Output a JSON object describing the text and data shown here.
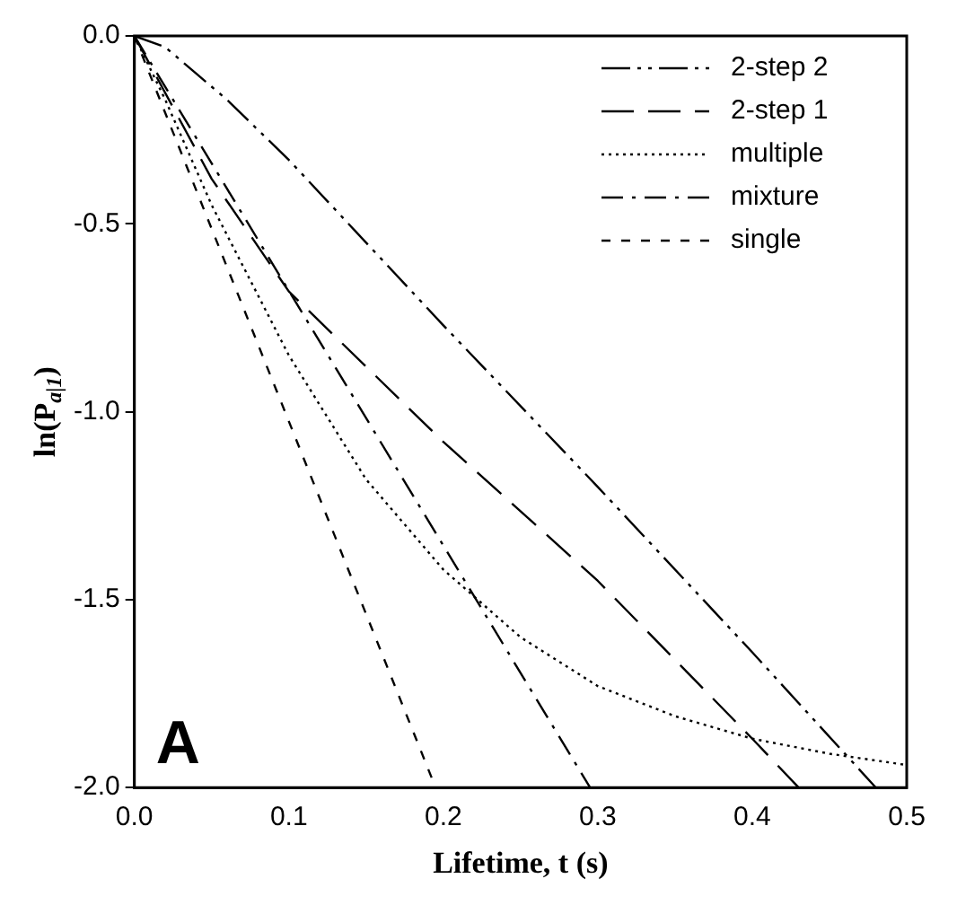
{
  "chart_data": {
    "type": "line",
    "xlabel": "Lifetime, t (s)",
    "ylabel": "ln(P$_{a|1}$)",
    "annotations": [
      "A"
    ],
    "xlim": [
      0,
      0.5
    ],
    "xticks": [
      {
        "value": 0,
        "label": "0.0"
      },
      0.1,
      0.2,
      0.3,
      0.4,
      0.5
    ],
    "ylim": [
      -2,
      0
    ],
    "yticks": [
      {
        "value": 0,
        "label": "0.0"
      },
      -0.5,
      {
        "value": -1,
        "label": "-1.0"
      },
      -1.5,
      {
        "value": -2,
        "label": "-2.0"
      }
    ],
    "grid": false,
    "legend": "top right",
    "marker": "none",
    "series": [
      {
        "name": "2-step 2",
        "color": "#000000",
        "line_style": "dashed",
        "x": [
          0,
          0.02,
          0.04,
          0.06,
          0.1,
          0.2,
          0.3,
          0.4,
          0.48
        ],
        "values": [
          0,
          -0.03,
          -0.1,
          -0.17,
          -0.33,
          -0.77,
          -1.2,
          -1.64,
          -2
        ]
      },
      {
        "name": "2-step 1",
        "color": "#000000",
        "line_style": "dashed",
        "x": [
          0,
          0.05,
          0.1,
          0.2,
          0.3,
          0.4,
          0.43
        ],
        "values": [
          0,
          -0.38,
          -0.68,
          -1.08,
          -1.45,
          -1.87,
          -2
        ]
      },
      {
        "name": "multiple",
        "color": "#000000",
        "line_style": "dotted",
        "x": [
          0,
          0.02,
          0.05,
          0.1,
          0.15,
          0.2,
          0.25,
          0.3,
          0.35,
          0.4,
          0.45,
          0.5
        ],
        "values": [
          0,
          -0.17,
          -0.45,
          -0.85,
          -1.18,
          -1.42,
          -1.6,
          -1.73,
          -1.81,
          -1.87,
          -1.91,
          -1.94
        ]
      },
      {
        "name": "mixture",
        "color": "#000000",
        "line_style": "dashed",
        "x": [
          0,
          0.295
        ],
        "values": [
          0,
          -2
        ]
      },
      {
        "name": "single",
        "color": "#000000",
        "line_style": "dashed",
        "x": [
          0,
          0.195
        ],
        "values": [
          0,
          -2
        ]
      }
    ]
  }
}
